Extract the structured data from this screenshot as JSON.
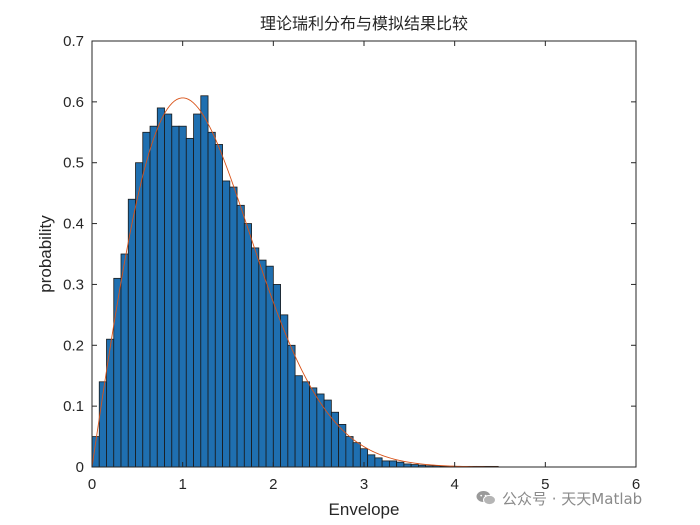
{
  "chart_data": {
    "type": "bar",
    "title": "理论瑞利分布与模拟结果比较",
    "xlabel": "Envelope",
    "ylabel": "probability",
    "xlim": [
      0,
      6
    ],
    "ylim": [
      0,
      0.7
    ],
    "xticks": [
      "0",
      "1",
      "2",
      "3",
      "4",
      "5",
      "6"
    ],
    "yticks": [
      "0",
      "0.1",
      "0.2",
      "0.3",
      "0.4",
      "0.5",
      "0.6",
      "0.7"
    ],
    "bar_width": 0.08,
    "series": [
      {
        "kind": "histogram",
        "color": "#1f6fb0",
        "edgecolor": "#1a1a1a",
        "x": [
          0.04,
          0.12,
          0.2,
          0.28,
          0.36,
          0.44,
          0.52,
          0.6,
          0.68,
          0.76,
          0.84,
          0.92,
          1.0,
          1.08,
          1.16,
          1.24,
          1.32,
          1.4,
          1.48,
          1.56,
          1.64,
          1.72,
          1.8,
          1.88,
          1.96,
          2.04,
          2.12,
          2.2,
          2.28,
          2.36,
          2.44,
          2.52,
          2.6,
          2.68,
          2.76,
          2.84,
          2.92,
          3.0,
          3.08,
          3.16,
          3.24,
          3.32,
          3.4,
          3.48,
          3.56,
          3.64,
          3.72,
          3.8,
          3.88,
          3.96,
          4.04,
          4.12,
          4.2,
          4.28,
          4.36,
          4.44,
          4.52,
          4.6,
          4.68,
          4.76,
          4.84,
          4.92,
          5.0,
          5.08,
          5.16
        ],
        "values": [
          0.05,
          0.14,
          0.21,
          0.31,
          0.35,
          0.44,
          0.5,
          0.55,
          0.56,
          0.59,
          0.58,
          0.56,
          0.56,
          0.54,
          0.58,
          0.61,
          0.55,
          0.53,
          0.47,
          0.46,
          0.43,
          0.4,
          0.36,
          0.34,
          0.33,
          0.3,
          0.25,
          0.2,
          0.15,
          0.14,
          0.13,
          0.12,
          0.11,
          0.09,
          0.07,
          0.05,
          0.04,
          0.03,
          0.02,
          0.015,
          0.01,
          0.01,
          0.008,
          0.005,
          0.004,
          0.003,
          0.002,
          0.002,
          0.001,
          0.001,
          0.001,
          0.001,
          0.001,
          0.001,
          0.001,
          0.001,
          0.0,
          0.0,
          0.0,
          0.0,
          0.0,
          0.0,
          0.0,
          0.0,
          0.0
        ]
      },
      {
        "kind": "theoretical-rayleigh-pdf",
        "color": "#d95319",
        "sigma": 1.0,
        "x_range": [
          0,
          5.2
        ]
      }
    ],
    "grid": false,
    "legend": "none"
  },
  "watermark": {
    "icon": "wechat-icon",
    "text": "公众号 · 天天Matlab"
  }
}
